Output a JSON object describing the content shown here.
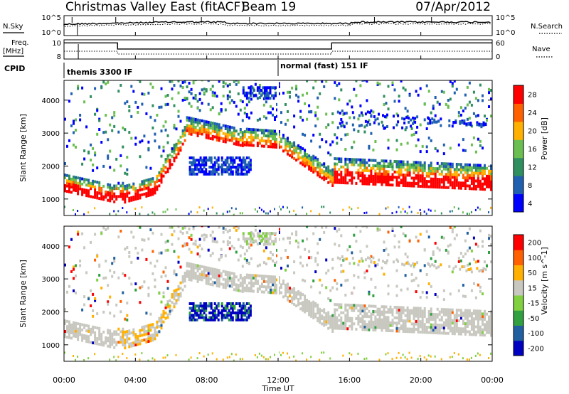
{
  "header": {
    "title": "Christmas Valley East (fitACF)",
    "beam": "Beam 19",
    "date": "07/Apr/2012"
  },
  "nsky_panel": {
    "left_label": "N.Sky",
    "left_ticks": [
      "10^5",
      "10^0"
    ],
    "right_ticks": [
      "10^5",
      "10^0"
    ],
    "right_label": "N.Search"
  },
  "freq_panel": {
    "left_label_1": "Freq.",
    "left_label_2": "[MHz]",
    "left_ticks": [
      "10",
      "8"
    ],
    "right_ticks": [
      "60",
      "0"
    ],
    "right_label": "Nave"
  },
  "cpid": {
    "label": "CPID",
    "modes": [
      {
        "name": "themis 3300 IF",
        "start_hour": 0
      },
      {
        "name": "normal (fast) 151 IF",
        "start_hour": 12
      }
    ]
  },
  "chart_data": [
    {
      "type": "heatmap",
      "name": "power",
      "ylabel": "Slant Range [km]",
      "yticks": [
        1000,
        2000,
        3000,
        4000
      ],
      "ylim": [
        500,
        4600
      ],
      "xlim": [
        0,
        24
      ],
      "colorbar": {
        "label": "Power [dB]",
        "ticks": [
          "28",
          "24",
          "20",
          "16",
          "12",
          "8",
          "4"
        ],
        "colors": [
          "#0000ff",
          "#2060b0",
          "#2f8f5f",
          "#6abf50",
          "#ffb000",
          "#ff6000",
          "#ff0000"
        ]
      }
    },
    {
      "type": "heatmap",
      "name": "velocity",
      "ylabel": "Slant Range [km]",
      "yticks": [
        1000,
        2000,
        3000,
        4000
      ],
      "ylim": [
        500,
        4600
      ],
      "xlim": [
        0,
        24
      ],
      "colorbar": {
        "label": "Velocity [m s^-1]",
        "ticks": [
          "200",
          "100",
          "50",
          "15",
          "-15",
          "-50",
          "-100",
          "-200"
        ],
        "colors": [
          "#0000c0",
          "#2060a0",
          "#30a040",
          "#80d040",
          "#c8c8c0",
          "#ffb000",
          "#ff6000",
          "#ff0000"
        ]
      }
    }
  ],
  "xaxis": {
    "ticks": [
      "00:00",
      "04:00",
      "08:00",
      "12:00",
      "16:00",
      "20:00",
      "00:00"
    ],
    "tick_hours": [
      0,
      4,
      8,
      12,
      16,
      20,
      24
    ],
    "label": "Time UT"
  }
}
